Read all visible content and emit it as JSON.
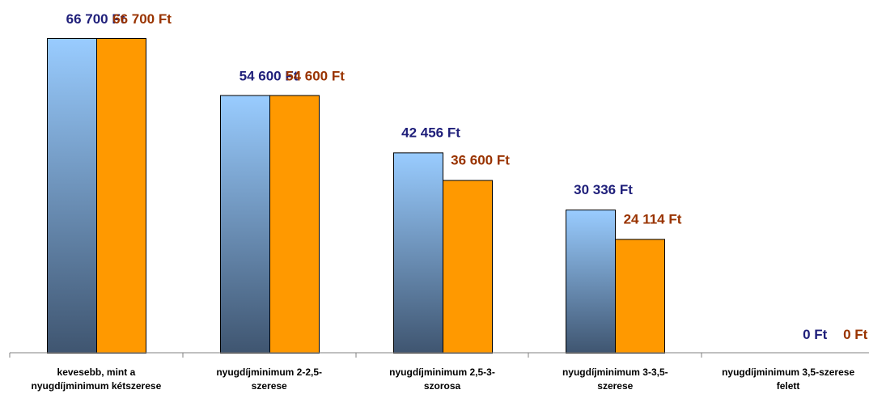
{
  "chart_data": {
    "type": "bar",
    "title": "",
    "xlabel": "",
    "ylabel": "",
    "ylim": [
      0,
      70000
    ],
    "grid": false,
    "legend": "none",
    "categories": [
      [
        "kevesebb, mint a",
        "nyugdíjminimum kétszerese"
      ],
      [
        "nyugdíjminimum 2-2,5-",
        "szerese"
      ],
      [
        "nyugdíjminimum 2,5-3-",
        "szorosa"
      ],
      [
        "nyugdíjminimum 3-3,5-",
        "szerese"
      ],
      [
        "nyugdíjminimum 3,5-szerese",
        "felett"
      ]
    ],
    "series": [
      {
        "values": [
          66700,
          54600,
          42456,
          30336,
          0
        ],
        "labels": [
          "66 700 Ft",
          "54 600 Ft",
          "42 456 Ft",
          "30 336 Ft",
          "0 Ft"
        ],
        "color_top": "#99ccff",
        "color_bottom": "#3f5570",
        "label_color": "#1f1f7a"
      },
      {
        "values": [
          66700,
          54600,
          36600,
          24114,
          0
        ],
        "labels": [
          "66 700 Ft",
          "54 600 Ft",
          "36 600 Ft",
          "24 114 Ft",
          "0 Ft"
        ],
        "color": "#ff9900",
        "label_color": "#993300"
      }
    ]
  }
}
